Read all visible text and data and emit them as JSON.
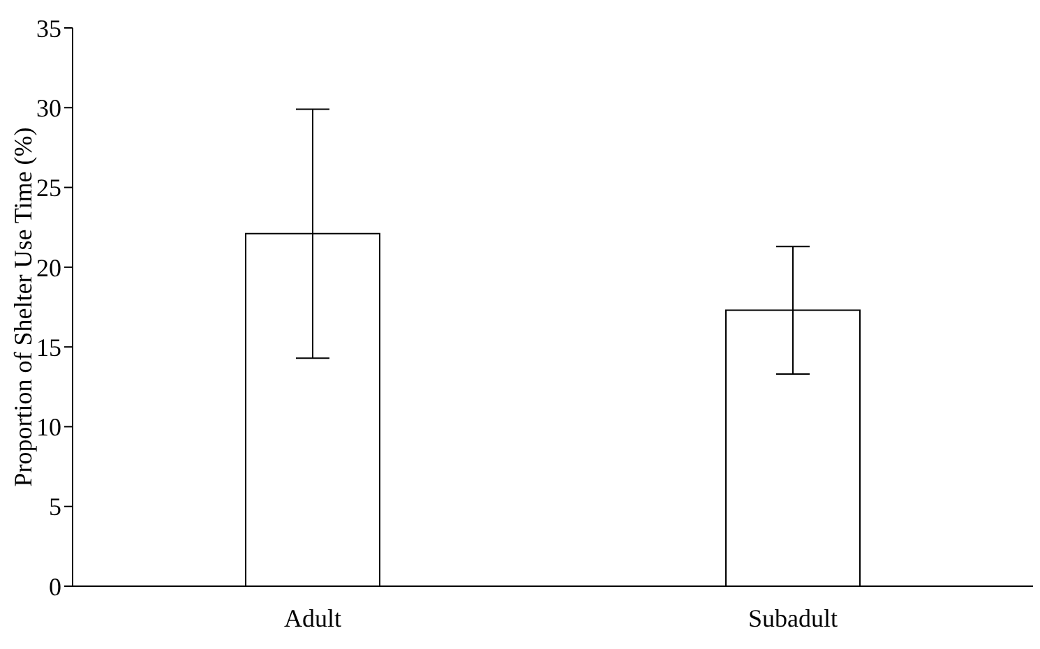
{
  "chart_data": {
    "type": "bar",
    "ylabel": "Proportion of Shelter Use Time (%)",
    "categories": [
      "Adult",
      "Subadult"
    ],
    "values": [
      22.1,
      17.3
    ],
    "errors": [
      7.8,
      4.0
    ],
    "color": "#ffffff",
    "ylim": [
      0,
      35
    ],
    "yticks": [
      0,
      5,
      10,
      15,
      20,
      25,
      30,
      35
    ],
    "grid": false,
    "legend": false
  }
}
